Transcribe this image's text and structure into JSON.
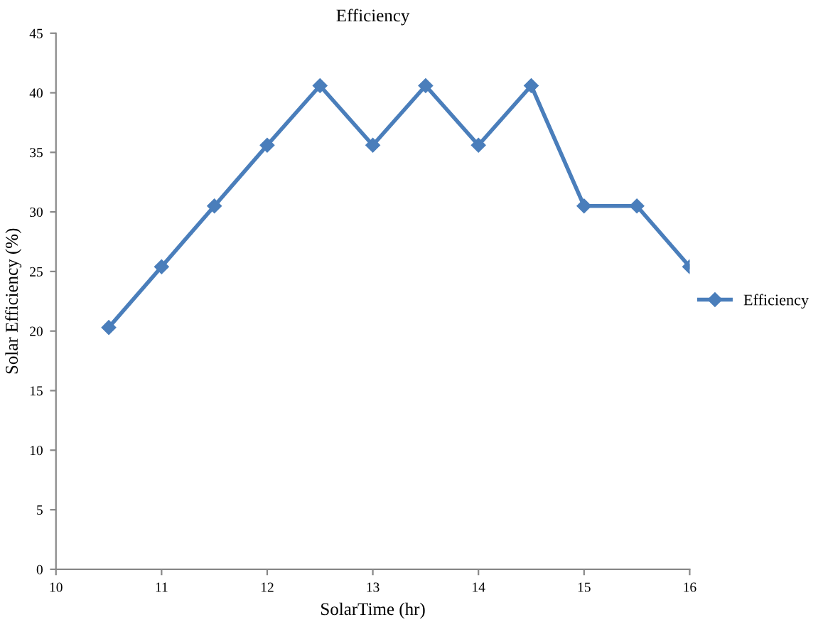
{
  "chart_data": {
    "type": "line",
    "title": "Efficiency",
    "xlabel": "SolarTime (hr)",
    "ylabel": "Solar Efficiency (%)",
    "x": [
      10.5,
      11,
      11.5,
      12,
      12.5,
      13,
      13.5,
      14,
      14.5,
      15,
      15.5,
      16
    ],
    "series": [
      {
        "name": "Efficiency",
        "color": "#4a7ebb",
        "values": [
          20.3,
          25.4,
          30.5,
          35.6,
          40.6,
          35.6,
          40.6,
          35.6,
          40.6,
          30.5,
          30.5,
          25.4
        ]
      }
    ],
    "xlim": [
      10,
      16
    ],
    "xticks": [
      10,
      11,
      12,
      13,
      14,
      15,
      16
    ],
    "ylim": [
      0,
      45
    ],
    "yticks": [
      0,
      5,
      10,
      15,
      20,
      25,
      30,
      35,
      40,
      45
    ],
    "grid": false,
    "legend": "right",
    "marker": "diamond",
    "line_style": "solid"
  }
}
